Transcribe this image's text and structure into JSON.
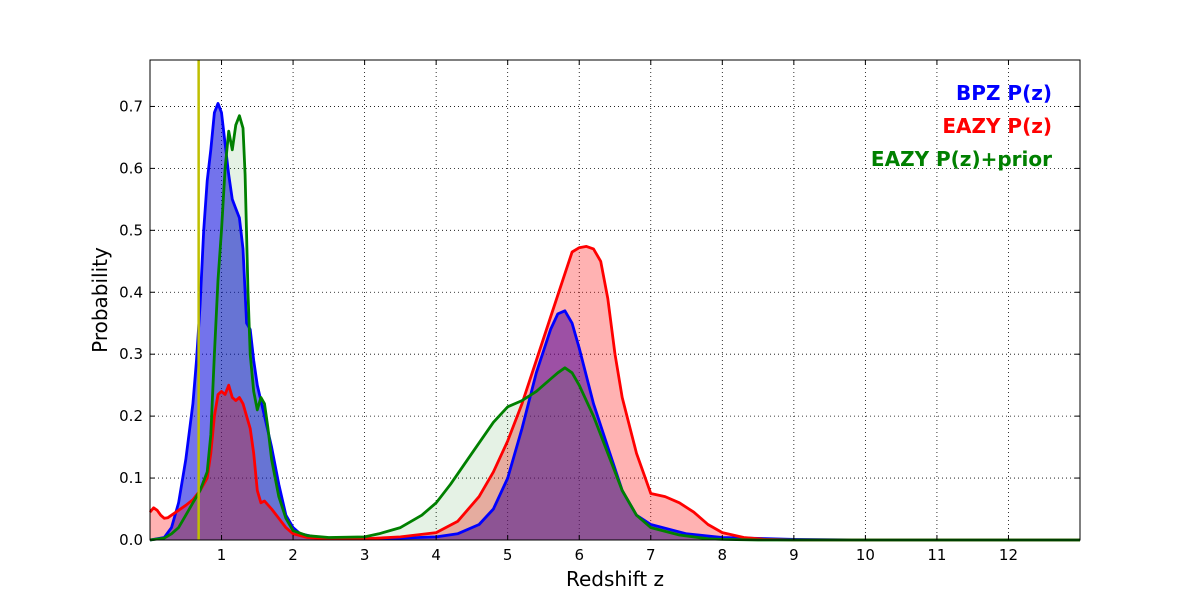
{
  "chart_data": {
    "type": "area",
    "title": "",
    "xlabel": "Redshift z",
    "ylabel": "Probability",
    "xlim": [
      0,
      13
    ],
    "ylim": [
      0,
      0.775
    ],
    "grid": true,
    "grid_style": "dotted",
    "x_ticks": [
      1,
      2,
      3,
      4,
      5,
      6,
      7,
      8,
      9,
      10,
      11,
      12
    ],
    "x_tick_labels": [
      "1",
      "2",
      "3",
      "4",
      "5",
      "6",
      "7",
      "8",
      "9",
      "10",
      "11",
      "12"
    ],
    "y_ticks": [
      0.0,
      0.1,
      0.2,
      0.3,
      0.4,
      0.5,
      0.6,
      0.7
    ],
    "y_tick_labels": [
      "0.0",
      "0.1",
      "0.2",
      "0.3",
      "0.4",
      "0.5",
      "0.6",
      "0.7"
    ],
    "legend_placement": "top-right",
    "vertical_line": {
      "x": 0.68,
      "color": "#bfbf00"
    },
    "series": [
      {
        "name": "BPZ P(z)",
        "color": "#0000ff",
        "fill_color": "#0000dd",
        "fill_opacity": 0.55,
        "x": [
          0,
          0.2,
          0.3,
          0.4,
          0.5,
          0.6,
          0.65,
          0.7,
          0.75,
          0.8,
          0.85,
          0.9,
          0.95,
          1.0,
          1.05,
          1.1,
          1.15,
          1.2,
          1.25,
          1.3,
          1.35,
          1.4,
          1.45,
          1.5,
          1.6,
          1.7,
          1.8,
          1.9,
          2.0,
          2.1,
          2.3,
          2.5,
          3,
          3.5,
          4,
          4.3,
          4.6,
          4.8,
          5.0,
          5.2,
          5.4,
          5.6,
          5.7,
          5.8,
          5.9,
          6.0,
          6.2,
          6.4,
          6.6,
          6.8,
          7.0,
          7.5,
          8,
          9,
          10,
          11,
          12,
          13
        ],
        "y": [
          0,
          0.004,
          0.02,
          0.06,
          0.13,
          0.22,
          0.29,
          0.38,
          0.5,
          0.58,
          0.63,
          0.69,
          0.705,
          0.69,
          0.64,
          0.59,
          0.55,
          0.535,
          0.52,
          0.47,
          0.35,
          0.34,
          0.29,
          0.25,
          0.2,
          0.15,
          0.09,
          0.04,
          0.02,
          0.01,
          0.005,
          0.003,
          0.002,
          0.003,
          0.005,
          0.01,
          0.025,
          0.05,
          0.1,
          0.18,
          0.27,
          0.34,
          0.365,
          0.37,
          0.35,
          0.31,
          0.22,
          0.15,
          0.08,
          0.04,
          0.025,
          0.01,
          0.004,
          0.001,
          0,
          0,
          0,
          0
        ]
      },
      {
        "name": "EAZY P(z)",
        "color": "#ff0000",
        "fill_color": "#ff0000",
        "fill_opacity": 0.3,
        "x": [
          0,
          0.05,
          0.1,
          0.15,
          0.2,
          0.25,
          0.3,
          0.4,
          0.5,
          0.6,
          0.7,
          0.8,
          0.85,
          0.9,
          0.95,
          1.0,
          1.05,
          1.1,
          1.15,
          1.2,
          1.25,
          1.3,
          1.35,
          1.4,
          1.45,
          1.5,
          1.55,
          1.6,
          1.7,
          1.8,
          1.9,
          2.0,
          2.2,
          2.5,
          3,
          3.5,
          4,
          4.3,
          4.6,
          4.8,
          5.0,
          5.2,
          5.4,
          5.6,
          5.8,
          5.9,
          6.0,
          6.1,
          6.2,
          6.3,
          6.4,
          6.5,
          6.6,
          6.8,
          7.0,
          7.2,
          7.4,
          7.6,
          7.8,
          8.0,
          8.3,
          8.6,
          9,
          10,
          11,
          12,
          13
        ],
        "y": [
          0.045,
          0.052,
          0.048,
          0.04,
          0.035,
          0.036,
          0.04,
          0.048,
          0.056,
          0.065,
          0.08,
          0.1,
          0.14,
          0.2,
          0.235,
          0.24,
          0.235,
          0.25,
          0.23,
          0.225,
          0.23,
          0.22,
          0.2,
          0.18,
          0.14,
          0.08,
          0.06,
          0.063,
          0.05,
          0.035,
          0.02,
          0.01,
          0.004,
          0.002,
          0.002,
          0.005,
          0.012,
          0.03,
          0.07,
          0.11,
          0.16,
          0.22,
          0.29,
          0.36,
          0.43,
          0.465,
          0.472,
          0.474,
          0.47,
          0.45,
          0.39,
          0.3,
          0.23,
          0.14,
          0.075,
          0.07,
          0.06,
          0.045,
          0.025,
          0.012,
          0.004,
          0.001,
          0,
          0,
          0,
          0,
          0
        ]
      },
      {
        "name": "EAZY P(z)+prior",
        "color": "#008000",
        "fill_color": "#008000",
        "fill_opacity": 0.1,
        "x": [
          0,
          0.2,
          0.3,
          0.4,
          0.5,
          0.6,
          0.7,
          0.8,
          0.85,
          0.9,
          0.95,
          1.0,
          1.05,
          1.1,
          1.15,
          1.2,
          1.25,
          1.3,
          1.33,
          1.37,
          1.4,
          1.45,
          1.5,
          1.55,
          1.6,
          1.65,
          1.7,
          1.8,
          1.9,
          2.0,
          2.2,
          2.5,
          3,
          3.2,
          3.5,
          3.8,
          4.0,
          4.2,
          4.5,
          4.8,
          5.0,
          5.2,
          5.4,
          5.6,
          5.7,
          5.8,
          5.9,
          6.0,
          6.2,
          6.4,
          6.6,
          6.8,
          7.0,
          7.4,
          7.8,
          8,
          8.5,
          9,
          10,
          11,
          12,
          13
        ],
        "y": [
          0,
          0.003,
          0.01,
          0.02,
          0.04,
          0.06,
          0.08,
          0.11,
          0.17,
          0.3,
          0.42,
          0.5,
          0.6,
          0.66,
          0.63,
          0.67,
          0.685,
          0.665,
          0.59,
          0.4,
          0.3,
          0.24,
          0.21,
          0.23,
          0.22,
          0.18,
          0.13,
          0.07,
          0.035,
          0.015,
          0.007,
          0.004,
          0.005,
          0.01,
          0.02,
          0.04,
          0.06,
          0.09,
          0.14,
          0.19,
          0.215,
          0.225,
          0.24,
          0.26,
          0.27,
          0.278,
          0.27,
          0.25,
          0.2,
          0.14,
          0.08,
          0.04,
          0.02,
          0.008,
          0.002,
          0.001,
          0,
          0,
          0,
          0,
          0,
          0
        ]
      }
    ],
    "legend": [
      {
        "label": "BPZ P(z)",
        "color": "#0000ff"
      },
      {
        "label": "EAZY P(z)",
        "color": "#ff0000"
      },
      {
        "label": "EAZY P(z)+prior",
        "color": "#008000"
      }
    ]
  }
}
